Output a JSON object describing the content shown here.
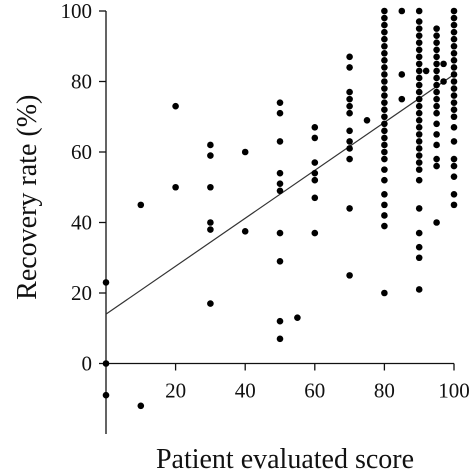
{
  "chart_data": {
    "type": "scatter",
    "title": "",
    "xlabel": "Patient evaluated score",
    "ylabel": "Recovery rate (%)",
    "xlim": [
      0,
      100
    ],
    "ylim": [
      -20,
      100
    ],
    "xticks": [
      20,
      40,
      60,
      80,
      100
    ],
    "yticks": [
      0,
      20,
      40,
      60,
      80,
      100
    ],
    "grid": false,
    "colors": {
      "points": "#000000",
      "line": "#333333",
      "axes": "#111111"
    },
    "series": [
      {
        "points": [
          [
            0,
            23
          ],
          [
            0,
            0
          ],
          [
            0,
            -9
          ],
          [
            10,
            45
          ],
          [
            10,
            -12
          ],
          [
            20,
            73
          ],
          [
            20,
            50
          ],
          [
            30,
            62
          ],
          [
            30,
            59
          ],
          [
            30,
            50
          ],
          [
            30,
            40
          ],
          [
            30,
            38
          ],
          [
            30,
            17
          ],
          [
            40,
            60
          ],
          [
            40,
            37.5
          ],
          [
            50,
            74
          ],
          [
            50,
            71
          ],
          [
            50,
            63
          ],
          [
            50,
            54
          ],
          [
            50,
            51
          ],
          [
            50,
            49
          ],
          [
            50,
            37
          ],
          [
            50,
            29
          ],
          [
            50,
            12
          ],
          [
            50,
            7
          ],
          [
            55,
            13
          ],
          [
            60,
            67
          ],
          [
            60,
            64
          ],
          [
            60,
            57
          ],
          [
            60,
            54
          ],
          [
            60,
            52
          ],
          [
            60,
            47
          ],
          [
            60,
            37
          ],
          [
            70,
            87
          ],
          [
            70,
            84
          ],
          [
            70,
            77
          ],
          [
            70,
            75
          ],
          [
            70,
            73
          ],
          [
            70,
            71
          ],
          [
            70,
            66
          ],
          [
            70,
            63
          ],
          [
            70,
            61
          ],
          [
            70,
            58
          ],
          [
            70,
            44
          ],
          [
            70,
            25
          ],
          [
            75,
            69
          ],
          [
            80,
            100
          ],
          [
            80,
            98
          ],
          [
            80,
            96
          ],
          [
            80,
            94
          ],
          [
            80,
            92
          ],
          [
            80,
            90
          ],
          [
            80,
            88
          ],
          [
            80,
            86
          ],
          [
            80,
            84
          ],
          [
            80,
            82
          ],
          [
            80,
            80
          ],
          [
            80,
            78
          ],
          [
            80,
            76
          ],
          [
            80,
            74
          ],
          [
            80,
            72
          ],
          [
            80,
            70
          ],
          [
            80,
            68
          ],
          [
            80,
            66
          ],
          [
            80,
            64
          ],
          [
            80,
            62
          ],
          [
            80,
            60
          ],
          [
            80,
            58
          ],
          [
            80,
            55
          ],
          [
            80,
            52
          ],
          [
            80,
            48
          ],
          [
            80,
            45
          ],
          [
            80,
            42
          ],
          [
            80,
            39
          ],
          [
            80,
            20
          ],
          [
            85,
            100
          ],
          [
            85,
            75
          ],
          [
            85,
            82
          ],
          [
            90,
            100
          ],
          [
            90,
            97
          ],
          [
            90,
            95
          ],
          [
            90,
            93
          ],
          [
            90,
            91
          ],
          [
            90,
            89
          ],
          [
            90,
            87
          ],
          [
            90,
            85
          ],
          [
            90,
            83
          ],
          [
            90,
            81
          ],
          [
            90,
            79
          ],
          [
            90,
            77
          ],
          [
            90,
            75
          ],
          [
            90,
            73
          ],
          [
            90,
            71
          ],
          [
            90,
            69
          ],
          [
            90,
            67
          ],
          [
            90,
            65
          ],
          [
            90,
            63
          ],
          [
            90,
            61
          ],
          [
            90,
            59
          ],
          [
            90,
            57
          ],
          [
            90,
            55
          ],
          [
            90,
            52
          ],
          [
            90,
            44
          ],
          [
            90,
            37
          ],
          [
            90,
            33
          ],
          [
            90,
            30
          ],
          [
            90,
            21
          ],
          [
            92,
            83
          ],
          [
            95,
            95
          ],
          [
            95,
            93
          ],
          [
            95,
            91
          ],
          [
            95,
            89
          ],
          [
            95,
            87
          ],
          [
            95,
            85
          ],
          [
            95,
            83
          ],
          [
            95,
            81
          ],
          [
            95,
            79
          ],
          [
            95,
            77
          ],
          [
            95,
            75
          ],
          [
            95,
            73
          ],
          [
            95,
            71
          ],
          [
            95,
            68
          ],
          [
            95,
            65
          ],
          [
            95,
            62
          ],
          [
            95,
            58
          ],
          [
            95,
            56
          ],
          [
            95,
            40
          ],
          [
            97,
            80
          ],
          [
            97,
            85
          ],
          [
            100,
            100
          ],
          [
            100,
            98
          ],
          [
            100,
            96
          ],
          [
            100,
            94
          ],
          [
            100,
            92
          ],
          [
            100,
            90
          ],
          [
            100,
            88
          ],
          [
            100,
            86
          ],
          [
            100,
            84
          ],
          [
            100,
            82
          ],
          [
            100,
            80
          ],
          [
            100,
            78
          ],
          [
            100,
            76
          ],
          [
            100,
            74
          ],
          [
            100,
            72
          ],
          [
            100,
            70
          ],
          [
            100,
            67
          ],
          [
            100,
            63
          ],
          [
            100,
            58
          ],
          [
            100,
            56
          ],
          [
            100,
            53
          ],
          [
            100,
            48
          ],
          [
            100,
            45
          ]
        ]
      }
    ],
    "trendline": {
      "x": [
        0,
        100
      ],
      "y": [
        14,
        82
      ]
    }
  }
}
